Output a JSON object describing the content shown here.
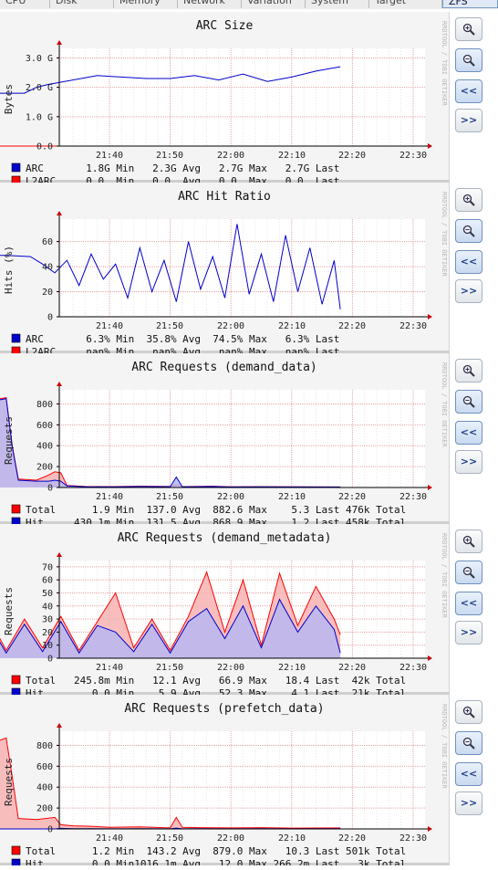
{
  "tabs": [
    "CPU",
    "Disk",
    "Memory",
    "Network",
    "Variation",
    "System",
    "Target",
    "ZFS"
  ],
  "credit": "RRDTOOL / TOBI OETIKER",
  "buttons": [
    "zoom-in-icon",
    "zoom-out-icon",
    "<<",
    ">>"
  ],
  "chart_data": [
    {
      "type": "line",
      "title": "ARC Size",
      "ylabel": "Bytes",
      "yticks": [
        "0.0",
        "1.0 G",
        "2.0 G",
        "3.0 G"
      ],
      "ytick_values": [
        0,
        1,
        2,
        3
      ],
      "ylim": [
        0,
        3.2
      ],
      "xticks": [
        "21:40",
        "21:50",
        "22:00",
        "22:10",
        "22:20",
        "22:30"
      ],
      "xlim_minutes": [
        -26,
        39
      ],
      "x_minutes": [
        -26,
        -20,
        -14,
        -12,
        -10,
        -6,
        -2,
        2,
        6,
        10,
        14,
        18,
        22,
        26,
        30,
        34,
        38
      ],
      "series": [
        {
          "name": "ARC",
          "color": "#0000cc",
          "fill": false,
          "values": [
            1.8,
            1.8,
            1.8,
            2.0,
            2.1,
            2.25,
            2.4,
            2.35,
            2.3,
            2.3,
            2.4,
            2.25,
            2.45,
            2.2,
            2.35,
            2.55,
            2.7
          ],
          "legend": [
            "ARC  ",
            "1.8G",
            "Min",
            "2.3G",
            "Avg",
            "2.7G",
            "Max",
            "2.7G",
            "Last"
          ]
        },
        {
          "name": "L2ARC",
          "color": "#ff0000",
          "fill": false,
          "values": [
            0,
            0,
            0,
            0,
            0,
            0,
            0,
            0,
            0,
            0,
            0,
            0,
            0,
            0,
            0,
            0,
            0
          ],
          "legend": [
            "L2ARC",
            "0.0 ",
            "Min",
            "0.0 ",
            "Avg",
            "0.0 ",
            "Max",
            "0.0 ",
            "Last"
          ]
        }
      ]
    },
    {
      "type": "line",
      "title": "ARC Hit Ratio",
      "ylabel": "Hits (%)",
      "yticks": [
        "0",
        "20",
        "40",
        "60"
      ],
      "ytick_values": [
        0,
        20,
        40,
        60
      ],
      "ylim": [
        0,
        75
      ],
      "xticks": [
        "21:40",
        "21:50",
        "22:00",
        "22:10",
        "22:20",
        "22:30"
      ],
      "xlim_minutes": [
        -26,
        39
      ],
      "x_minutes": [
        -26,
        -22,
        -17,
        -13,
        -11,
        -9,
        -7,
        -5,
        -3,
        -1,
        1,
        3,
        5,
        7,
        9,
        11,
        13,
        15,
        17,
        19,
        21,
        23,
        25,
        27,
        29,
        31,
        33,
        35,
        37,
        38
      ],
      "series": [
        {
          "name": "ARC",
          "color": "#0000cc",
          "fill": false,
          "values": [
            48,
            49,
            49,
            48,
            42,
            35,
            45,
            25,
            50,
            30,
            42,
            15,
            55,
            20,
            45,
            12,
            60,
            22,
            48,
            15,
            74,
            18,
            50,
            12,
            65,
            20,
            55,
            10,
            45,
            6
          ],
          "legend": [
            "ARC  ",
            "6.3%",
            "Min",
            "35.8%",
            "Avg",
            "74.5%",
            "Max",
            "6.3%",
            "Last"
          ]
        },
        {
          "name": "L2ARC",
          "color": "#ff0000",
          "fill": false,
          "values": [],
          "legend": [
            "L2ARC",
            "nan%",
            "Min",
            "nan%",
            "Avg",
            "nan%",
            "Max",
            "nan%",
            "Last"
          ]
        }
      ]
    },
    {
      "type": "area",
      "title": "ARC Requests (demand_data)",
      "ylabel": "Requests",
      "yticks": [
        "0",
        "200",
        "400",
        "600",
        "800"
      ],
      "ytick_values": [
        0,
        200,
        400,
        600,
        800
      ],
      "ylim": [
        0,
        900
      ],
      "xticks": [
        "21:40",
        "21:50",
        "22:00",
        "22:10",
        "22:20",
        "22:30"
      ],
      "xlim_minutes": [
        -26,
        39
      ],
      "x_minutes": [
        -26,
        -24,
        -22,
        -20,
        -18,
        -17,
        -16,
        -15,
        -12,
        -10,
        -9,
        -8,
        -7,
        -4,
        0,
        5,
        10,
        11,
        12,
        14,
        17,
        20,
        25,
        30,
        38
      ],
      "series": [
        {
          "name": "Total",
          "color": "#ff0000",
          "fill": "#f7b3b3",
          "values": [
            800,
            820,
            790,
            860,
            850,
            860,
            400,
            80,
            70,
            120,
            150,
            140,
            20,
            10,
            8,
            12,
            10,
            30,
            8,
            10,
            12,
            6,
            8,
            6,
            5
          ],
          "legend": [
            "Total",
            "1.9",
            "Min",
            "137.0",
            "Avg",
            "882.6",
            "Max",
            "5.3",
            "Last",
            "476k",
            "Total"
          ]
        },
        {
          "name": "Hit",
          "color": "#0000cc",
          "fill": "#b8b8f2",
          "values": [
            790,
            810,
            780,
            850,
            840,
            850,
            390,
            70,
            60,
            60,
            70,
            60,
            15,
            8,
            6,
            10,
            8,
            100,
            6,
            8,
            10,
            5,
            6,
            5,
            4
          ],
          "legend": [
            "Hit",
            "430.1m",
            "Min",
            "131.5",
            "Avg",
            "868.9",
            "Max",
            "1.2",
            "Last",
            "458k",
            "Total"
          ]
        }
      ]
    },
    {
      "type": "area",
      "title": "ARC Requests (demand_metadata)",
      "ylabel": "Requests",
      "yticks": [
        "0",
        "10",
        "20",
        "30",
        "40",
        "50",
        "60",
        "70"
      ],
      "ytick_values": [
        0,
        10,
        20,
        30,
        40,
        50,
        60,
        70
      ],
      "ylim": [
        0,
        72
      ],
      "xticks": [
        "21:40",
        "21:50",
        "22:00",
        "22:10",
        "22:20",
        "22:30"
      ],
      "xlim_minutes": [
        -26,
        39
      ],
      "x_minutes": [
        -26,
        -23,
        -20,
        -17,
        -14,
        -11,
        -8,
        -5,
        -2,
        1,
        4,
        7,
        10,
        13,
        16,
        19,
        22,
        25,
        28,
        31,
        34,
        37,
        38
      ],
      "series": [
        {
          "name": "Total",
          "color": "#ff0000",
          "fill": "#f7b3b3",
          "values": [
            30,
            8,
            32,
            6,
            30,
            8,
            32,
            6,
            28,
            50,
            8,
            30,
            6,
            32,
            66,
            20,
            60,
            10,
            65,
            25,
            55,
            30,
            18
          ],
          "legend": [
            "Total",
            "245.8m",
            "Min",
            "12.1",
            "Avg",
            "66.9",
            "Max",
            "18.4",
            "Last",
            "42k",
            "Total"
          ]
        },
        {
          "name": "Hit",
          "color": "#0000cc",
          "fill": "#b8b8f2",
          "values": [
            25,
            5,
            28,
            4,
            26,
            5,
            28,
            4,
            25,
            20,
            5,
            26,
            4,
            28,
            38,
            15,
            40,
            8,
            45,
            20,
            40,
            22,
            4
          ],
          "legend": [
            "Hit",
            "0.0",
            "Min",
            "5.9",
            "Avg",
            "52.3",
            "Max",
            "4.1",
            "Last",
            "21k",
            "Total"
          ]
        }
      ]
    },
    {
      "type": "area",
      "title": "ARC Requests (prefetch_data)",
      "ylabel": "Requests",
      "yticks": [
        "0",
        "200",
        "400",
        "600",
        "800"
      ],
      "ytick_values": [
        0,
        200,
        400,
        600,
        800
      ],
      "ylim": [
        0,
        900
      ],
      "xticks": [
        "21:40",
        "21:50",
        "22:00",
        "22:10",
        "22:20",
        "22:30"
      ],
      "xlim_minutes": [
        -26,
        39
      ],
      "x_minutes": [
        -26,
        -24,
        -22,
        -20,
        -18,
        -17,
        -16,
        -15,
        -12,
        -9,
        -8,
        -6,
        -3,
        0,
        5,
        10,
        11,
        12,
        15,
        20,
        25,
        30,
        38
      ],
      "series": [
        {
          "name": "Total",
          "color": "#ff0000",
          "fill": "#f7b3b3",
          "values": [
            820,
            850,
            830,
            860,
            850,
            870,
            500,
            100,
            90,
            110,
            40,
            30,
            25,
            15,
            20,
            10,
            110,
            15,
            12,
            10,
            12,
            8,
            10
          ],
          "legend": [
            "Total",
            "1.2",
            "Min",
            "143.2",
            "Avg",
            "879.0",
            "Max",
            "10.3",
            "Last",
            "501k",
            "Total"
          ]
        },
        {
          "name": "Hit",
          "color": "#0000cc",
          "fill": "#b8b8f2",
          "values": [
            0,
            0,
            0,
            0,
            0,
            0,
            0,
            0,
            0,
            0,
            5,
            3,
            2,
            1,
            2,
            1,
            8,
            1,
            2,
            1,
            3,
            1,
            3
          ],
          "legend": [
            "Hit",
            "0.0",
            "Min",
            "1016.1m",
            "Avg",
            "12.0",
            "Max",
            "266.2m",
            "Last",
            "3k",
            "Total"
          ]
        }
      ]
    }
  ]
}
